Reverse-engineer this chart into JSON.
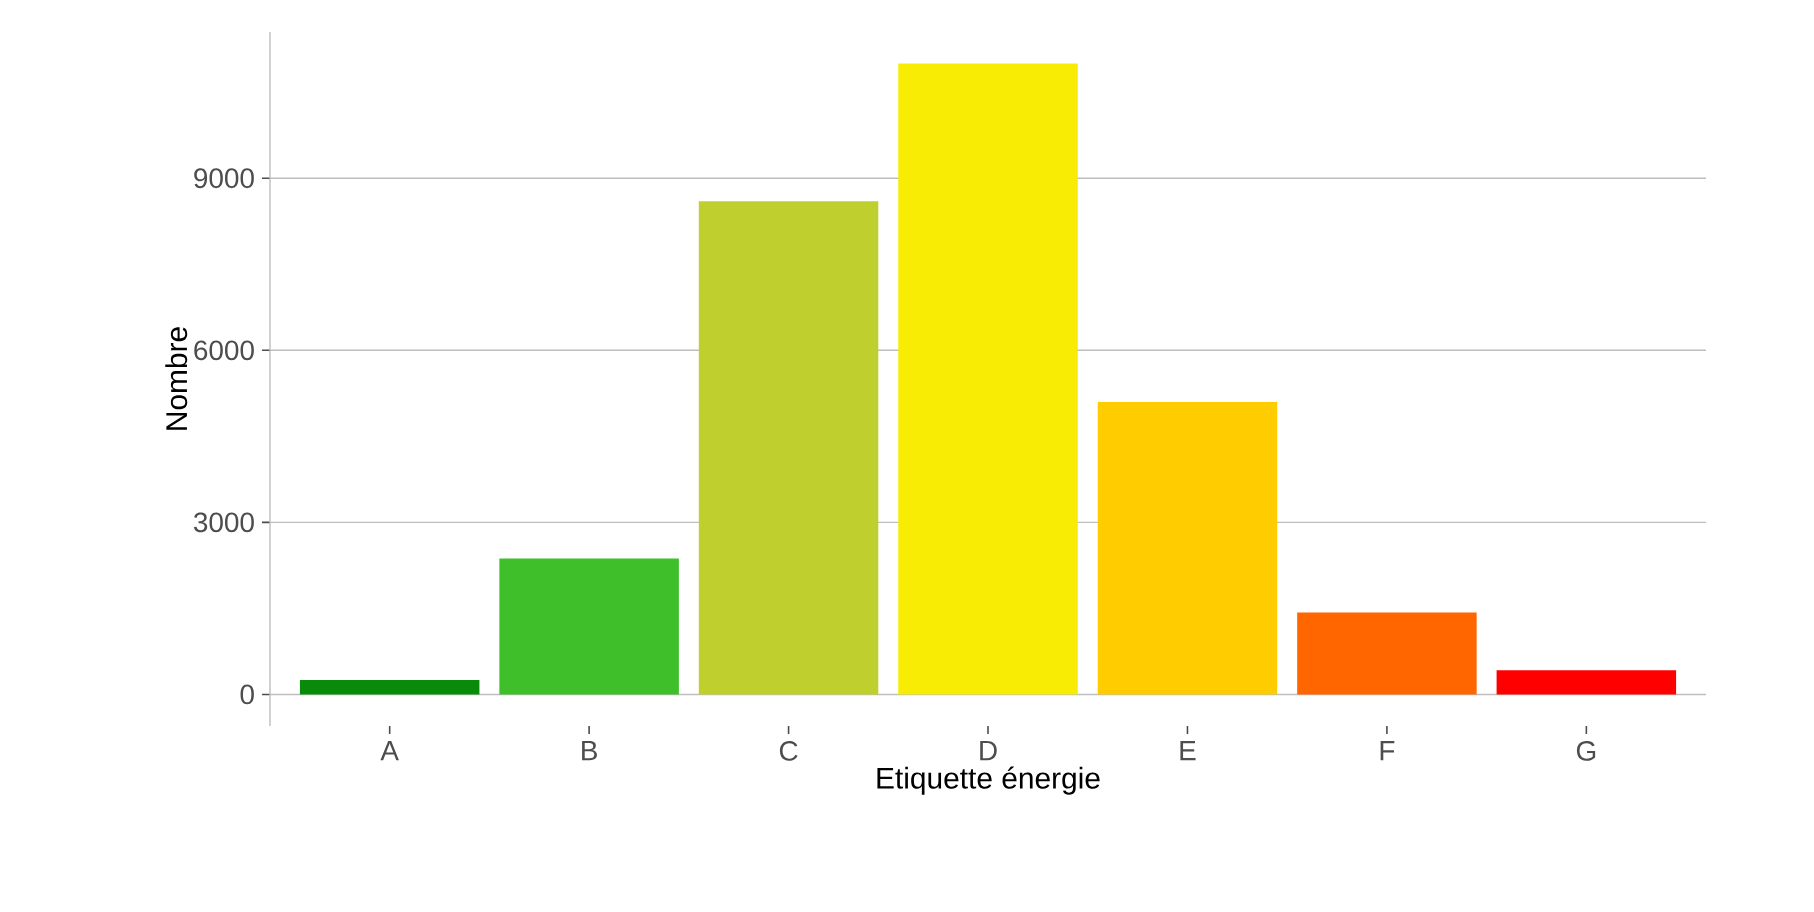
{
  "chart_data": {
    "type": "bar",
    "xlabel": "Etiquette énergie",
    "ylabel": "Nombre",
    "categories": [
      "A",
      "B",
      "C",
      "D",
      "E",
      "F",
      "G"
    ],
    "values": [
      250,
      2370,
      8600,
      11000,
      5100,
      1430,
      420
    ],
    "colors": [
      "#0a8a0a",
      "#3fbf2a",
      "#bfcf2d",
      "#f8ec05",
      "#ffcc00",
      "#ff6600",
      "#ff0000"
    ],
    "ylim": [
      -550,
      11550
    ],
    "yticks": [
      0,
      3000,
      6000,
      9000
    ],
    "grid": "y"
  }
}
